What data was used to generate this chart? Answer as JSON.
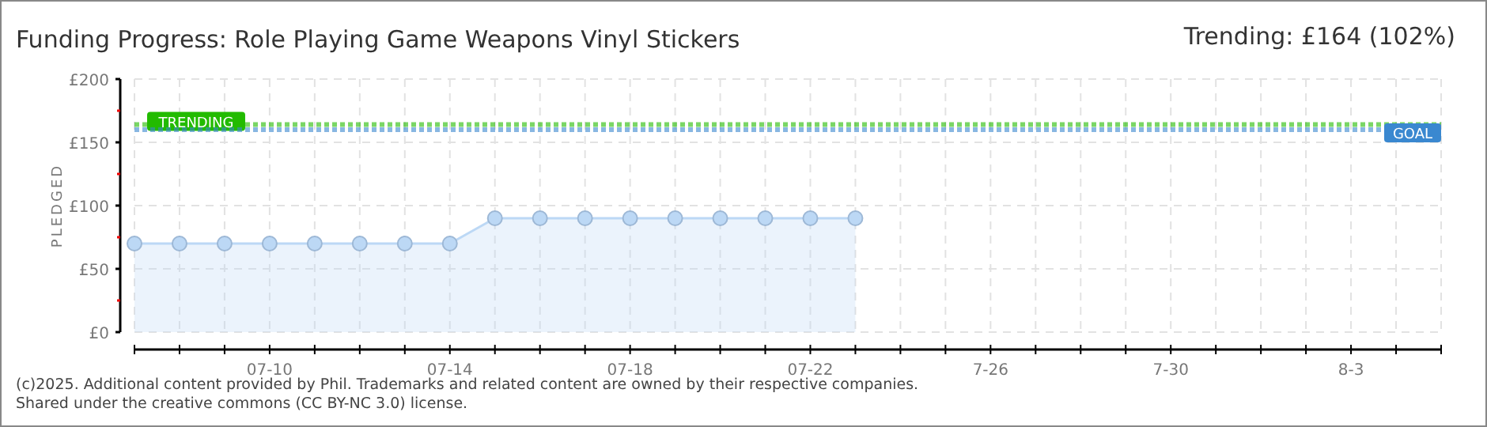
{
  "chart_data": {
    "type": "area",
    "title": "Funding Progress: Role Playing Game Weapons Vinyl Stickers",
    "subtitle": "Trending: £164 (102%)",
    "ylabel": "PLEDGED",
    "x": [
      "2025-07-07",
      "2025-07-08",
      "2025-07-09",
      "2025-07-10",
      "2025-07-11",
      "2025-07-12",
      "2025-07-13",
      "2025-07-14",
      "2025-07-15",
      "2025-07-16",
      "2025-07-17",
      "2025-07-18",
      "2025-07-19",
      "2025-07-20",
      "2025-07-21",
      "2025-07-22",
      "2025-07-23"
    ],
    "series": [
      {
        "color": "#bcd8f5",
        "values": [
          70,
          70,
          70,
          70,
          70,
          70,
          70,
          70,
          90,
          90,
          90,
          90,
          90,
          90,
          90,
          90,
          90
        ]
      }
    ],
    "marker": "circle",
    "grid": true,
    "xlim": [
      "2025-07-07",
      "2025-08-05"
    ],
    "xticks": [
      {
        "value": "2025-07-07",
        "label": null
      },
      {
        "value": "2025-07-08",
        "label": null
      },
      {
        "value": "2025-07-09",
        "label": null
      },
      {
        "value": "2025-07-10",
        "label": "07-10"
      },
      {
        "value": "2025-07-11",
        "label": null
      },
      {
        "value": "2025-07-12",
        "label": null
      },
      {
        "value": "2025-07-13",
        "label": null
      },
      {
        "value": "2025-07-14",
        "label": "07-14"
      },
      {
        "value": "2025-07-15",
        "label": null
      },
      {
        "value": "2025-07-16",
        "label": null
      },
      {
        "value": "2025-07-17",
        "label": null
      },
      {
        "value": "2025-07-18",
        "label": "07-18"
      },
      {
        "value": "2025-07-19",
        "label": null
      },
      {
        "value": "2025-07-20",
        "label": null
      },
      {
        "value": "2025-07-21",
        "label": null
      },
      {
        "value": "2025-07-22",
        "label": "07-22"
      },
      {
        "value": "2025-07-23",
        "label": null
      },
      {
        "value": "2025-07-24",
        "label": null
      },
      {
        "value": "2025-07-25",
        "label": null
      },
      {
        "value": "2025-07-26",
        "label": "7-26"
      },
      {
        "value": "2025-07-27",
        "label": null
      },
      {
        "value": "2025-07-28",
        "label": null
      },
      {
        "value": "2025-07-29",
        "label": null
      },
      {
        "value": "2025-07-30",
        "label": "7-30"
      },
      {
        "value": "2025-07-31",
        "label": null
      },
      {
        "value": "2025-08-01",
        "label": null
      },
      {
        "value": "2025-08-02",
        "label": null
      },
      {
        "value": "2025-08-03",
        "label": "8-3"
      },
      {
        "value": "2025-08-04",
        "label": null
      },
      {
        "value": "2025-08-05",
        "label": null
      }
    ],
    "ylim": [
      0,
      200
    ],
    "yticks": [
      {
        "value": 0,
        "label": "£0"
      },
      {
        "value": 25,
        "label": null
      },
      {
        "value": 50,
        "label": "£50"
      },
      {
        "value": 75,
        "label": null
      },
      {
        "value": 100,
        "label": "£100"
      },
      {
        "value": 125,
        "label": null
      },
      {
        "value": 150,
        "label": "£150"
      },
      {
        "value": 175,
        "label": null
      },
      {
        "value": 200,
        "label": "£200"
      }
    ],
    "ref_lines": [
      {
        "axis": "y",
        "value": 164,
        "label": "TRENDING",
        "color": "#22bb00",
        "line_style": "dotted"
      },
      {
        "axis": "y",
        "value": 160,
        "label": "GOAL",
        "color": "#3a88d0",
        "line_style": "dotted"
      }
    ],
    "annotations": [
      "(c)2025. Additional content provided by Phil. Trademarks and related content are owned by their respective companies.",
      "Shared under the creative commons (CC BY-NC 3.0) license."
    ]
  }
}
